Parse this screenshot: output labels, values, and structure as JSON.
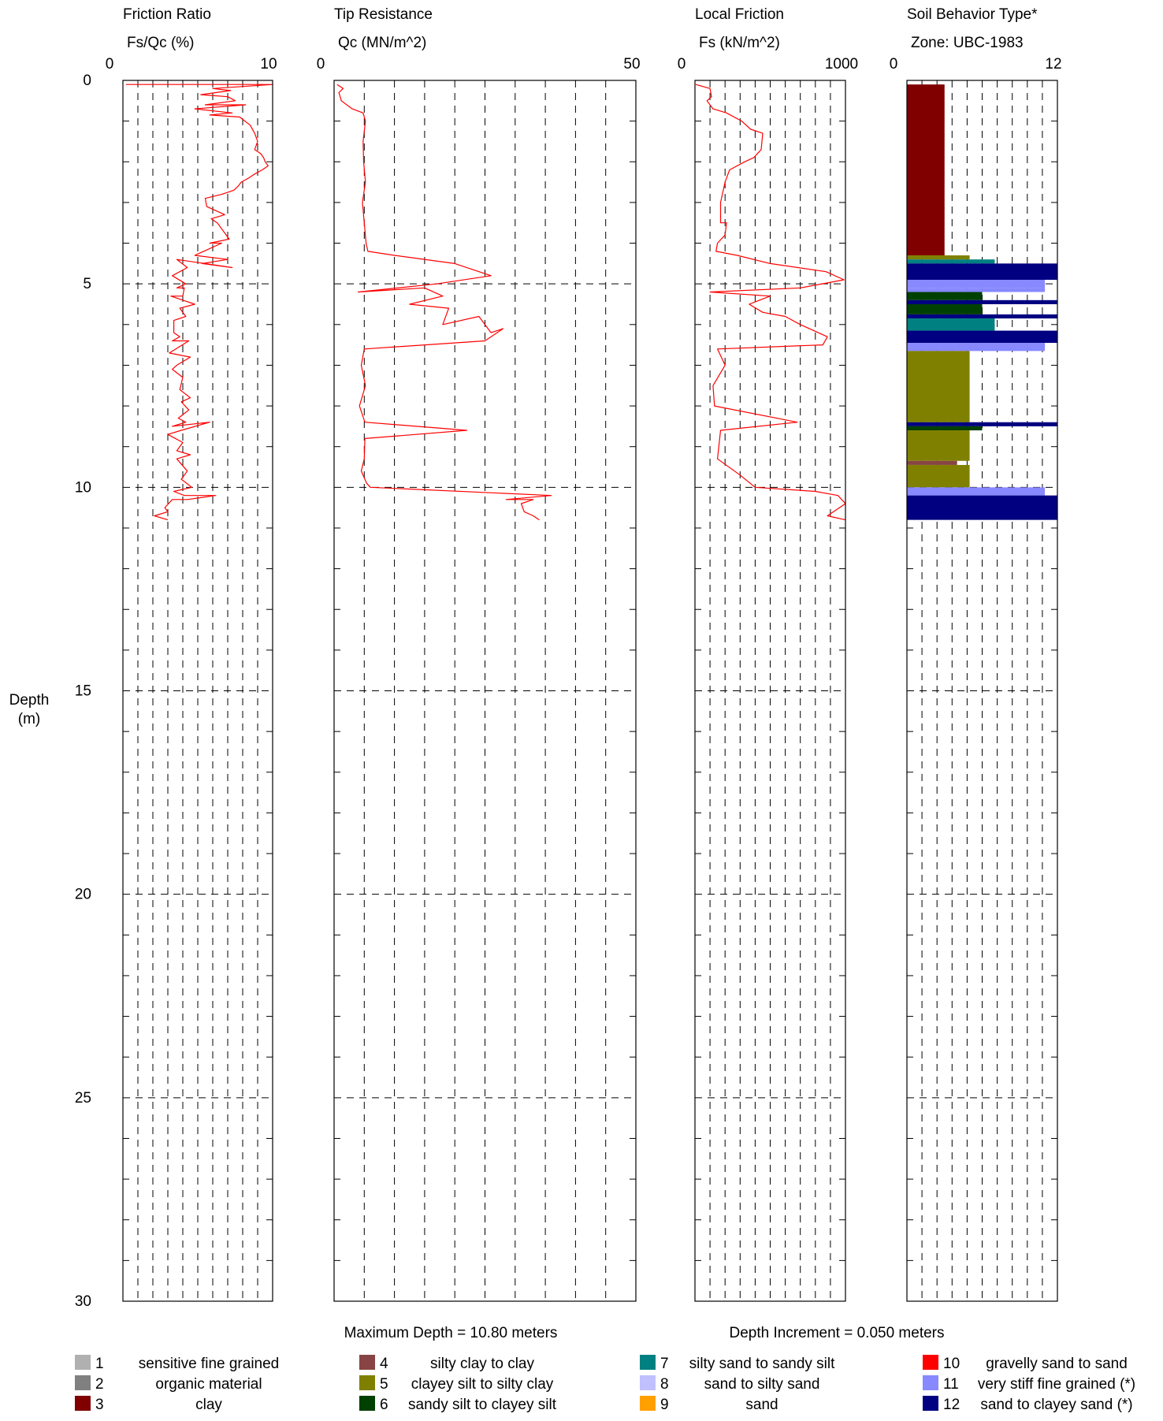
{
  "footer": {
    "max_depth": "Maximum Depth = 10.80 meters",
    "depth_increment": "Depth Increment = 0.050 meters"
  },
  "depth_axis": {
    "label_line1": "Depth",
    "label_line2": "(m)",
    "range": [
      0,
      30
    ],
    "ticks": [
      0,
      5,
      10,
      15,
      20,
      25,
      30
    ],
    "inverted": true
  },
  "chart_data": [
    {
      "type": "line",
      "title": "Friction Ratio",
      "units": "Fs/Qc (%)",
      "xlim": [
        0,
        10
      ],
      "x_tick_labels": [
        "0",
        "10"
      ],
      "line_color": "#ff0000",
      "points": [
        [
          0.2,
          0.1
        ],
        [
          10,
          0.1
        ],
        [
          6,
          0.2
        ],
        [
          7.2,
          0.25
        ],
        [
          5.2,
          0.35
        ],
        [
          7,
          0.4
        ],
        [
          7.5,
          0.5
        ],
        [
          5.5,
          0.6
        ],
        [
          8.2,
          0.6
        ],
        [
          4.8,
          0.7
        ],
        [
          7.3,
          0.8
        ],
        [
          5.8,
          0.85
        ],
        [
          7.8,
          0.9
        ],
        [
          8.5,
          1.1
        ],
        [
          8.8,
          1.3
        ],
        [
          9,
          1.5
        ],
        [
          8.8,
          1.7
        ],
        [
          9.2,
          1.8
        ],
        [
          9.4,
          1.9
        ],
        [
          9.5,
          2
        ],
        [
          9.7,
          2.1
        ],
        [
          9.3,
          2.2
        ],
        [
          8.8,
          2.3
        ],
        [
          8.4,
          2.4
        ],
        [
          7.9,
          2.5
        ],
        [
          7.7,
          2.6
        ],
        [
          7.4,
          2.7
        ],
        [
          6.6,
          2.8
        ],
        [
          5.5,
          2.9
        ],
        [
          5.6,
          3.1
        ],
        [
          6.8,
          3.3
        ],
        [
          5.9,
          3.4
        ],
        [
          6.3,
          3.5
        ],
        [
          7.1,
          3.9
        ],
        [
          5.8,
          4
        ],
        [
          6.6,
          4
        ],
        [
          4.8,
          4.3
        ],
        [
          7,
          4.4
        ],
        [
          5.3,
          4.5
        ],
        [
          7.3,
          4.6
        ],
        [
          3.6,
          4.4
        ],
        [
          4.3,
          4.6
        ],
        [
          3.3,
          4.8
        ],
        [
          4.2,
          5
        ],
        [
          3.6,
          5.1
        ],
        [
          4.1,
          5.1
        ],
        [
          4,
          5.3
        ],
        [
          3.2,
          5.3
        ],
        [
          4.8,
          5.5
        ],
        [
          3.8,
          5.6
        ],
        [
          4.2,
          5.8
        ],
        [
          3.4,
          5.9
        ],
        [
          3.4,
          6.2
        ],
        [
          3.8,
          6.3
        ],
        [
          3.3,
          6.4
        ],
        [
          4.4,
          6.4
        ],
        [
          3.1,
          6.7
        ],
        [
          4.5,
          6.8
        ],
        [
          3.6,
          7
        ],
        [
          3.3,
          7.1
        ],
        [
          4,
          7.3
        ],
        [
          3.8,
          7.6
        ],
        [
          4.5,
          7.8
        ],
        [
          3.9,
          7.9
        ],
        [
          4.4,
          8.1
        ],
        [
          3.7,
          8.3
        ],
        [
          4.2,
          8.4
        ],
        [
          3.3,
          8.5
        ],
        [
          5.8,
          8.4
        ],
        [
          3.9,
          8.6
        ],
        [
          3,
          8.7
        ],
        [
          4,
          8.9
        ],
        [
          3.6,
          9.1
        ],
        [
          4.5,
          9.2
        ],
        [
          3.6,
          9.3
        ],
        [
          4.3,
          9.6
        ],
        [
          3.9,
          9.8
        ],
        [
          4.6,
          10
        ],
        [
          3.4,
          10.1
        ],
        [
          4.1,
          10.2
        ],
        [
          6.2,
          10.2
        ],
        [
          4.3,
          10.3
        ],
        [
          3.3,
          10.3
        ],
        [
          2.8,
          10.5
        ],
        [
          3,
          10.6
        ],
        [
          2.1,
          10.7
        ],
        [
          3,
          10.8
        ]
      ]
    },
    {
      "type": "line",
      "title": "Tip Resistance",
      "units": "Qc (MN/m^2)",
      "xlim": [
        0,
        50
      ],
      "x_tick_labels": [
        "0",
        "50"
      ],
      "line_color": "#ff0000",
      "points": [
        [
          0.5,
          0.1
        ],
        [
          1.5,
          0.2
        ],
        [
          0.8,
          0.3
        ],
        [
          1.2,
          0.5
        ],
        [
          3,
          0.7
        ],
        [
          4.8,
          0.8
        ],
        [
          5.2,
          1
        ],
        [
          4.8,
          1.5
        ],
        [
          4.9,
          2
        ],
        [
          5.2,
          2.5
        ],
        [
          4.7,
          3
        ],
        [
          5,
          3.5
        ],
        [
          5.3,
          4
        ],
        [
          5.6,
          4.2
        ],
        [
          10,
          4.3
        ],
        [
          20,
          4.5
        ],
        [
          26,
          4.8
        ],
        [
          17,
          5
        ],
        [
          4,
          5.2
        ],
        [
          15,
          5.1
        ],
        [
          18,
          5.3
        ],
        [
          12.5,
          5.5
        ],
        [
          19,
          5.6
        ],
        [
          18,
          6
        ],
        [
          24,
          5.8
        ],
        [
          26,
          6.2
        ],
        [
          28,
          6.1
        ],
        [
          25,
          6.4
        ],
        [
          5,
          6.6
        ],
        [
          4.5,
          7
        ],
        [
          5.2,
          7.5
        ],
        [
          4.2,
          8
        ],
        [
          5.1,
          8.4
        ],
        [
          22,
          8.6
        ],
        [
          5.1,
          8.8
        ],
        [
          5,
          9.3
        ],
        [
          4.5,
          9.6
        ],
        [
          5.4,
          9.9
        ],
        [
          6,
          10
        ],
        [
          36,
          10.2
        ],
        [
          28.5,
          10.3
        ],
        [
          33,
          10.3
        ],
        [
          31,
          10.4
        ],
        [
          31.5,
          10.6
        ],
        [
          33,
          10.7
        ],
        [
          34,
          10.8
        ]
      ]
    },
    {
      "type": "line",
      "title": "Local Friction",
      "units": "Fs (kN/m^2)",
      "xlim": [
        0,
        1000
      ],
      "x_tick_labels": [
        "0",
        "1000"
      ],
      "line_color": "#ff0000",
      "points": [
        [
          5,
          0.1
        ],
        [
          100,
          0.2
        ],
        [
          110,
          0.4
        ],
        [
          80,
          0.5
        ],
        [
          120,
          0.7
        ],
        [
          210,
          0.8
        ],
        [
          310,
          1
        ],
        [
          370,
          1.2
        ],
        [
          450,
          1.3
        ],
        [
          440,
          1.7
        ],
        [
          390,
          1.9
        ],
        [
          330,
          2
        ],
        [
          230,
          2.2
        ],
        [
          200,
          2.5
        ],
        [
          170,
          3
        ],
        [
          170,
          3.4
        ],
        [
          170,
          3.5
        ],
        [
          210,
          3.5
        ],
        [
          200,
          3.8
        ],
        [
          150,
          4
        ],
        [
          140,
          4.2
        ],
        [
          280,
          4.3
        ],
        [
          500,
          4.5
        ],
        [
          870,
          4.7
        ],
        [
          990,
          4.9
        ],
        [
          700,
          5.1
        ],
        [
          100,
          5.2
        ],
        [
          500,
          5.3
        ],
        [
          360,
          5.5
        ],
        [
          450,
          5.7
        ],
        [
          600,
          5.8
        ],
        [
          700,
          6
        ],
        [
          880,
          6.3
        ],
        [
          850,
          6.5
        ],
        [
          150,
          6.6
        ],
        [
          200,
          7
        ],
        [
          120,
          7.5
        ],
        [
          130,
          8
        ],
        [
          680,
          8.4
        ],
        [
          170,
          8.6
        ],
        [
          150,
          9.3
        ],
        [
          300,
          9.7
        ],
        [
          400,
          10
        ],
        [
          800,
          10.1
        ],
        [
          950,
          10.2
        ],
        [
          1000,
          10.4
        ],
        [
          880,
          10.7
        ],
        [
          1000,
          10.8
        ]
      ]
    },
    {
      "type": "bar",
      "title": "Soil Behavior Type*",
      "units": "Zone: UBC-1983",
      "xlim": [
        0,
        12
      ],
      "x_tick_labels": [
        "0",
        "12"
      ],
      "layers": [
        {
          "top": 0.1,
          "bottom": 4.3,
          "zone": 3
        },
        {
          "top": 4.3,
          "bottom": 4.4,
          "zone": 5
        },
        {
          "top": 4.4,
          "bottom": 4.5,
          "zone": 7
        },
        {
          "top": 4.5,
          "bottom": 4.9,
          "zone": 12
        },
        {
          "top": 4.9,
          "bottom": 5.1,
          "zone": 11
        },
        {
          "top": 5.1,
          "bottom": 5.2,
          "zone": 11
        },
        {
          "top": 5.2,
          "bottom": 5.4,
          "zone": 6
        },
        {
          "top": 5.4,
          "bottom": 5.5,
          "zone": 12
        },
        {
          "top": 5.5,
          "bottom": 5.75,
          "zone": 6
        },
        {
          "top": 5.75,
          "bottom": 5.85,
          "zone": 12
        },
        {
          "top": 5.85,
          "bottom": 6.15,
          "zone": 7
        },
        {
          "top": 6.15,
          "bottom": 6.45,
          "zone": 12
        },
        {
          "top": 6.45,
          "bottom": 6.65,
          "zone": 11
        },
        {
          "top": 6.65,
          "bottom": 8.4,
          "zone": 5
        },
        {
          "top": 8.4,
          "bottom": 8.5,
          "zone": 12
        },
        {
          "top": 8.5,
          "bottom": 8.6,
          "zone": 6
        },
        {
          "top": 8.6,
          "bottom": 9.35,
          "zone": 5
        },
        {
          "top": 9.35,
          "bottom": 9.45,
          "zone": 4
        },
        {
          "top": 9.45,
          "bottom": 10.0,
          "zone": 5
        },
        {
          "top": 10.0,
          "bottom": 10.2,
          "zone": 11
        },
        {
          "top": 10.2,
          "bottom": 10.8,
          "zone": 12
        }
      ]
    }
  ],
  "legend": [
    {
      "num": "1",
      "label": "sensitive fine grained",
      "color": "#b0b0b0"
    },
    {
      "num": "2",
      "label": "organic material",
      "color": "#808080"
    },
    {
      "num": "3",
      "label": "clay",
      "color": "#800000"
    },
    {
      "num": "4",
      "label": "silty clay to clay",
      "color": "#884444"
    },
    {
      "num": "5",
      "label": "clayey silt to silty clay",
      "color": "#808000"
    },
    {
      "num": "6",
      "label": "sandy silt to clayey silt",
      "color": "#004000"
    },
    {
      "num": "7",
      "label": "silty sand to sandy silt",
      "color": "#008080"
    },
    {
      "num": "8",
      "label": "sand to silty sand",
      "color": "#c0c0ff"
    },
    {
      "num": "9",
      "label": "sand",
      "color": "#ffa000"
    },
    {
      "num": "10",
      "label": "gravelly sand to sand",
      "color": "#ff0000"
    },
    {
      "num": "11",
      "label": "very stiff fine grained (*)",
      "color": "#8888ff"
    },
    {
      "num": "12",
      "label": "sand to clayey sand (*)",
      "color": "#000080"
    }
  ]
}
